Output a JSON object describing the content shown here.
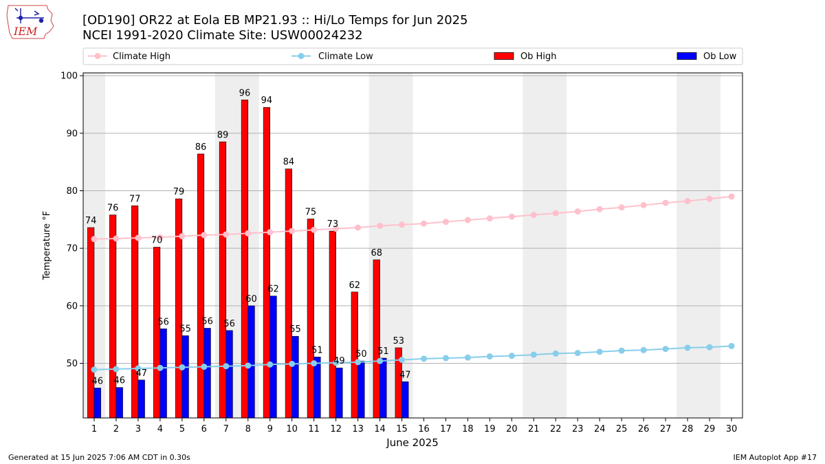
{
  "header": {
    "title_line1": "[OD190] OR22 at Eola EB MP21.93  :: Hi/Lo Temps for Jun 2025",
    "title_line2": "NCEI 1991-2020 Climate Site: USW00024232"
  },
  "logo": {
    "text": "IEM"
  },
  "footer": {
    "left": "Generated at 15 Jun 2025 7:06 AM CDT in 0.30s",
    "right": "IEM Autoplot App #17"
  },
  "colors": {
    "ob_high": "#ff0000",
    "ob_low": "#0000ff",
    "climate_high": "#ffc0cb",
    "climate_low": "#87ceeb",
    "weekend_band": "#eeeeee",
    "grid": "#b0b0b0"
  },
  "chart_data": {
    "type": "bar",
    "title": "[OD190] OR22 at Eola EB MP21.93  :: Hi/Lo Temps for Jun 2025",
    "subtitle": "NCEI 1991-2020 Climate Site: USW00024232",
    "xlabel": "June 2025",
    "ylabel": "Temperature °F",
    "xlim": [
      0.5,
      30.5
    ],
    "ylim": [
      40.5,
      100.5
    ],
    "yticks": [
      50,
      60,
      70,
      80,
      90,
      100
    ],
    "grid": "horizontal",
    "legend_placement": "top",
    "categories": [
      "1",
      "2",
      "3",
      "4",
      "5",
      "6",
      "7",
      "8",
      "9",
      "10",
      "11",
      "12",
      "13",
      "14",
      "15",
      "16",
      "17",
      "18",
      "19",
      "20",
      "21",
      "22",
      "23",
      "24",
      "25",
      "26",
      "27",
      "28",
      "29",
      "30"
    ],
    "weekend_bands": [
      [
        0.5,
        1.5
      ],
      [
        6.5,
        8.5
      ],
      [
        13.5,
        15.5
      ],
      [
        20.5,
        22.5
      ],
      [
        27.5,
        29.5
      ]
    ],
    "series": [
      {
        "name": "Climate High",
        "kind": "line",
        "x": [
          1,
          2,
          3,
          4,
          5,
          6,
          7,
          8,
          9,
          10,
          11,
          12,
          13,
          14,
          15,
          16,
          17,
          18,
          19,
          20,
          21,
          22,
          23,
          24,
          25,
          26,
          27,
          28,
          29,
          30
        ],
        "values": [
          71.6,
          71.7,
          71.8,
          71.9,
          72.1,
          72.3,
          72.4,
          72.6,
          72.8,
          73.0,
          73.2,
          73.4,
          73.6,
          73.9,
          74.1,
          74.3,
          74.6,
          74.9,
          75.2,
          75.5,
          75.8,
          76.1,
          76.4,
          76.8,
          77.1,
          77.5,
          77.9,
          78.2,
          78.6,
          79.0
        ]
      },
      {
        "name": "Climate Low",
        "kind": "line",
        "x": [
          1,
          2,
          3,
          4,
          5,
          6,
          7,
          8,
          9,
          10,
          11,
          12,
          13,
          14,
          15,
          16,
          17,
          18,
          19,
          20,
          21,
          22,
          23,
          24,
          25,
          26,
          27,
          28,
          29,
          30
        ],
        "values": [
          48.9,
          49.0,
          49.1,
          49.2,
          49.3,
          49.4,
          49.5,
          49.6,
          49.8,
          49.9,
          50.0,
          50.1,
          50.2,
          50.4,
          50.6,
          50.8,
          50.9,
          51.0,
          51.2,
          51.3,
          51.5,
          51.7,
          51.8,
          52.0,
          52.2,
          52.3,
          52.5,
          52.7,
          52.8,
          53.0
        ]
      },
      {
        "name": "Ob High",
        "kind": "bar",
        "x": [
          1,
          2,
          3,
          4,
          5,
          6,
          7,
          8,
          9,
          10,
          11,
          12,
          13,
          14,
          15
        ],
        "values": [
          73.6,
          75.8,
          77.4,
          70.2,
          78.6,
          86.4,
          88.5,
          95.8,
          94.5,
          83.8,
          75.1,
          73.0,
          62.4,
          68.0,
          52.7
        ],
        "labels": [
          "74",
          "76",
          "77",
          "70",
          "79",
          "86",
          "89",
          "96",
          "94",
          "84",
          "75",
          "73",
          "62",
          "68",
          "53"
        ]
      },
      {
        "name": "Ob Low",
        "kind": "bar",
        "x": [
          1,
          2,
          3,
          4,
          5,
          6,
          7,
          8,
          9,
          10,
          11,
          12,
          13,
          14,
          15
        ],
        "values": [
          45.7,
          45.8,
          47.1,
          56.0,
          54.8,
          56.1,
          55.7,
          60.0,
          61.7,
          54.7,
          51.1,
          49.2,
          50.4,
          50.9,
          46.8
        ],
        "labels": [
          "46",
          "46",
          "47",
          "56",
          "55",
          "56",
          "56",
          "60",
          "62",
          "55",
          "51",
          "49",
          "50",
          "51",
          "47"
        ]
      }
    ]
  }
}
